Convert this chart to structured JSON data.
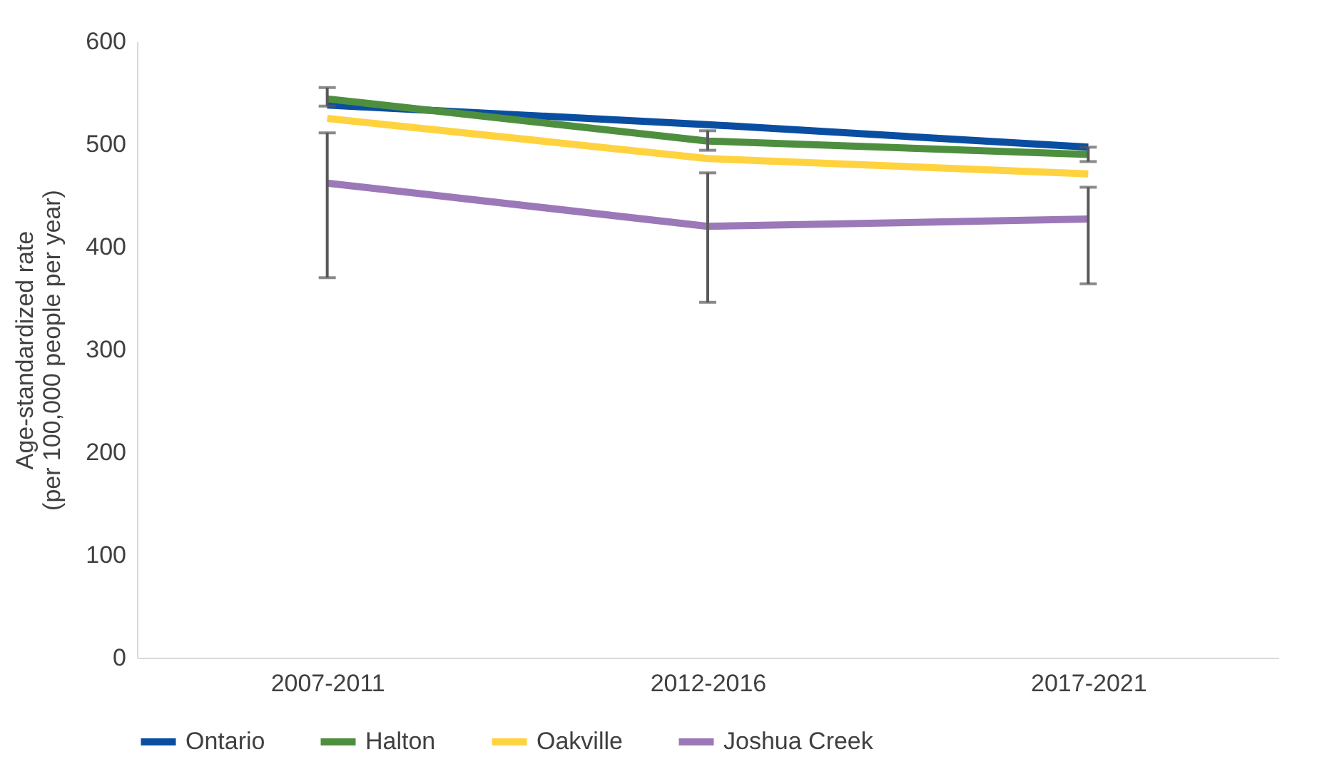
{
  "chart_data": {
    "type": "line",
    "ylabel": "Age-standardized rate\n(per 100,000 people per year)",
    "categories": [
      "2007-2011",
      "2012-2016",
      "2017-2021"
    ],
    "series": [
      {
        "name": "Ontario",
        "color": "#0a4ea2",
        "values": [
          538,
          519,
          497
        ]
      },
      {
        "name": "Halton",
        "color": "#4e8f3f",
        "values": [
          544,
          503,
          490
        ],
        "errors": [
          [
            537,
            555
          ],
          [
            494,
            513
          ],
          [
            483,
            497
          ]
        ]
      },
      {
        "name": "Oakville",
        "color": "#ffd33f",
        "values": [
          525,
          486,
          471
        ]
      },
      {
        "name": "Joshua Creek",
        "color": "#9b78b8",
        "values": [
          462,
          420,
          427
        ],
        "errors": [
          [
            370,
            511
          ],
          [
            346,
            472
          ],
          [
            364,
            458
          ]
        ]
      }
    ],
    "ylim": [
      0,
      600
    ],
    "yticks": [
      0,
      100,
      200,
      300,
      400,
      500,
      600
    ],
    "legend": "bottom",
    "marker": "none",
    "line_style": "solid"
  }
}
